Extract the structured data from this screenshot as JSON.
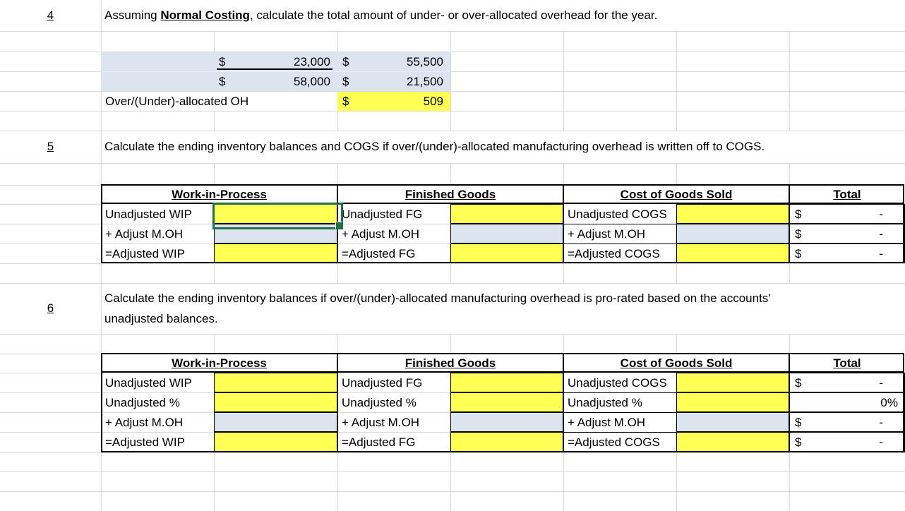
{
  "colors": {
    "input_yellow": "#FFFF54",
    "input_blue": "#DCE4F0",
    "selection_green": "#1F7145",
    "gridline_grey": "#D9D9D9"
  },
  "questions": {
    "q4": {
      "number": "4",
      "pre": "Assuming ",
      "bold": "Normal Costing",
      "post": ", calculate the total amount of under- or over-allocated overhead for the year."
    },
    "q5": {
      "number": "5",
      "text": "Calculate the ending inventory balances and COGS if over/(under)-allocated manufacturing overhead is written off to COGS."
    },
    "q6": {
      "number": "6",
      "line1": "Calculate the ending inventory balances if over/(under)-allocated manufacturing overhead is pro-rated based on the accounts'",
      "line2": "unadjusted balances."
    }
  },
  "overhead_calc": {
    "r1c1_cur": "$",
    "r1c1_val": "23,000",
    "r1c2_cur": "$",
    "r1c2_val": "55,500",
    "r2c1_cur": "$",
    "r2c1_val": "58,000",
    "r2c2_cur": "$",
    "r2c2_val": "21,500",
    "result_label": "Over/(Under)-allocated OH",
    "result_cur": "$",
    "result_val": "509"
  },
  "writeoff_table": {
    "header_wip": "Work-in-Process",
    "header_fg": "Finished Goods",
    "header_cogs": "Cost of Goods Sold",
    "header_total": "Total",
    "wip_rows": [
      "Unadjusted WIP",
      "+ Adjust M.OH",
      "=Adjusted WIP"
    ],
    "fg_rows": [
      "Unadjusted FG",
      "+ Adjust M.OH",
      "=Adjusted FG"
    ],
    "cogs_rows": [
      "Unadjusted COGS",
      "+ Adjust M.OH",
      "=Adjusted COGS"
    ],
    "total_rows": [
      {
        "cur": "$",
        "val": "-"
      },
      {
        "cur": "$",
        "val": "-"
      },
      {
        "cur": "$",
        "val": "-"
      }
    ]
  },
  "prorate_table": {
    "header_wip": "Work-in-Process",
    "header_fg": "Finished Goods",
    "header_cogs": "Cost of Goods Sold",
    "header_total": "Total",
    "wip_rows": [
      "Unadjusted WIP",
      "Unadjusted %",
      "+ Adjust M.OH",
      "=Adjusted WIP"
    ],
    "fg_rows": [
      "Unadjusted FG",
      "Unadjusted %",
      "+ Adjust M.OH",
      "=Adjusted FG"
    ],
    "cogs_rows": [
      "Unadjusted COGS",
      "Unadjusted %",
      "+ Adjust M.OH",
      "=Adjusted COGS"
    ],
    "total_rows": [
      {
        "cur": "$",
        "val": "-"
      },
      {
        "cur": "",
        "val": "0%"
      },
      {
        "cur": "$",
        "val": "-"
      },
      {
        "cur": "$",
        "val": "-"
      }
    ]
  }
}
